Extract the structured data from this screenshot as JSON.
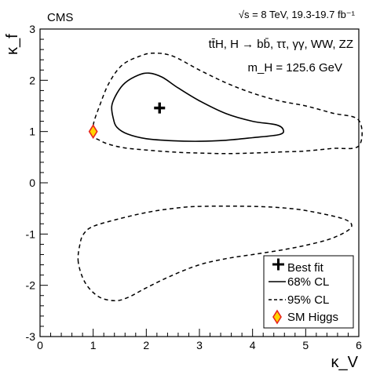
{
  "chart_data": {
    "type": "scatter",
    "experiment_label": "CMS",
    "energy_label": "√s = 8 TeV, 19.3-19.7 fb⁻¹",
    "process_label": "tt̄H, H → bb̄, ττ, γγ, WW, ZZ",
    "mass_label": "m_H = 125.6 GeV",
    "xlabel": "κ_V",
    "ylabel": "κ_f",
    "xlim": [
      0,
      6
    ],
    "ylim": [
      -3,
      3
    ],
    "xticks": [
      "0",
      "1",
      "2",
      "3",
      "4",
      "5",
      "6"
    ],
    "yticks": [
      "-3",
      "-2",
      "-1",
      "0",
      "1",
      "2",
      "3"
    ],
    "grid": false,
    "legend_position": "bottom-right",
    "legend": [
      {
        "label": "Best fit",
        "marker": "cross"
      },
      {
        "label": "68% CL",
        "marker": "solid-line"
      },
      {
        "label": "95% CL",
        "marker": "dashed-line"
      },
      {
        "label": "SM Higgs",
        "marker": "diamond"
      }
    ],
    "best_fit": {
      "x": 2.25,
      "y": 1.46
    },
    "sm_higgs": {
      "x": 1.0,
      "y": 1.0
    },
    "colors": {
      "sm_fill": "#ffd400",
      "sm_edge": "#e8241d"
    },
    "contour_68": [
      [
        1.35,
        1.5
      ],
      [
        1.45,
        1.75
      ],
      [
        1.6,
        1.95
      ],
      [
        1.85,
        2.1
      ],
      [
        2.05,
        2.14
      ],
      [
        2.3,
        2.06
      ],
      [
        2.6,
        1.85
      ],
      [
        3.0,
        1.6
      ],
      [
        3.5,
        1.35
      ],
      [
        4.0,
        1.2
      ],
      [
        4.45,
        1.13
      ],
      [
        4.58,
        1.03
      ],
      [
        4.5,
        0.94
      ],
      [
        4.0,
        0.88
      ],
      [
        3.5,
        0.83
      ],
      [
        3.0,
        0.81
      ],
      [
        2.5,
        0.82
      ],
      [
        2.0,
        0.86
      ],
      [
        1.65,
        0.95
      ],
      [
        1.45,
        1.08
      ],
      [
        1.38,
        1.25
      ],
      [
        1.35,
        1.5
      ]
    ],
    "contour_95_upper": [
      [
        1.0,
        1.12
      ],
      [
        1.12,
        1.5
      ],
      [
        1.3,
        1.95
      ],
      [
        1.55,
        2.3
      ],
      [
        1.9,
        2.48
      ],
      [
        2.15,
        2.53
      ],
      [
        2.5,
        2.47
      ],
      [
        3.0,
        2.2
      ],
      [
        3.5,
        1.95
      ],
      [
        4.0,
        1.75
      ],
      [
        4.5,
        1.6
      ],
      [
        5.0,
        1.5
      ],
      [
        5.5,
        1.36
      ],
      [
        6.0,
        1.22
      ],
      [
        6.0,
        0.72
      ],
      [
        5.5,
        0.67
      ],
      [
        5.0,
        0.62
      ],
      [
        4.5,
        0.6
      ],
      [
        4.0,
        0.58
      ],
      [
        3.5,
        0.57
      ],
      [
        3.0,
        0.58
      ],
      [
        2.5,
        0.6
      ],
      [
        2.0,
        0.64
      ],
      [
        1.6,
        0.68
      ],
      [
        1.3,
        0.75
      ],
      [
        1.12,
        0.83
      ],
      [
        1.03,
        0.9
      ],
      [
        1.0,
        1.12
      ]
    ],
    "contour_95_lower": [
      [
        0.72,
        -1.55
      ],
      [
        0.75,
        -1.2
      ],
      [
        0.82,
        -1.0
      ],
      [
        1.0,
        -0.85
      ],
      [
        1.5,
        -0.7
      ],
      [
        2.0,
        -0.58
      ],
      [
        2.5,
        -0.5
      ],
      [
        3.0,
        -0.46
      ],
      [
        4.0,
        -0.46
      ],
      [
        4.7,
        -0.5
      ],
      [
        5.2,
        -0.58
      ],
      [
        5.75,
        -0.72
      ],
      [
        5.85,
        -0.88
      ],
      [
        5.5,
        -1.08
      ],
      [
        5.0,
        -1.22
      ],
      [
        4.5,
        -1.32
      ],
      [
        4.0,
        -1.4
      ],
      [
        3.5,
        -1.48
      ],
      [
        3.0,
        -1.6
      ],
      [
        2.5,
        -1.8
      ],
      [
        2.0,
        -2.05
      ],
      [
        1.65,
        -2.24
      ],
      [
        1.4,
        -2.3
      ],
      [
        1.1,
        -2.22
      ],
      [
        0.85,
        -1.95
      ],
      [
        0.72,
        -1.55
      ]
    ]
  }
}
